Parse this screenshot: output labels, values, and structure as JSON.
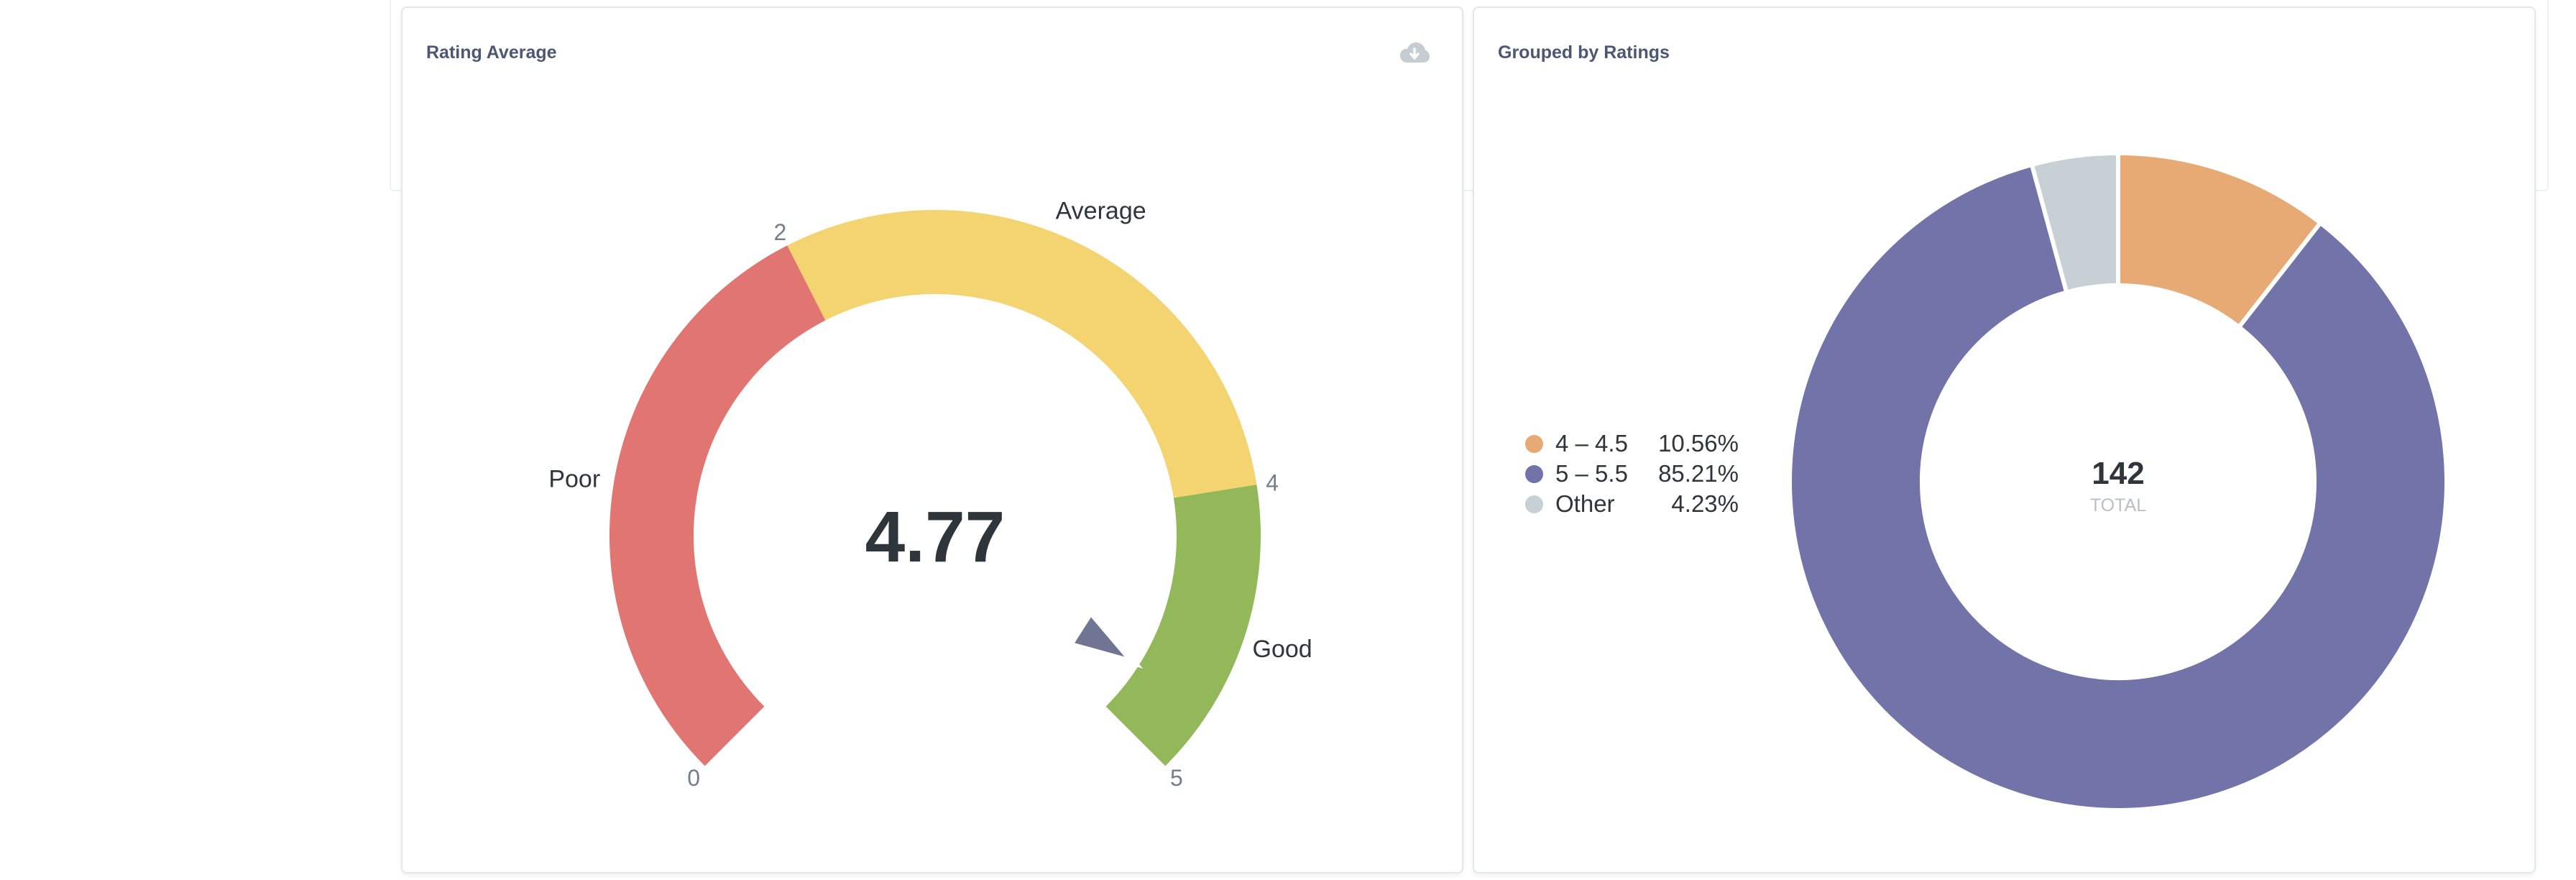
{
  "colors": {
    "poor": "#e07572",
    "average": "#f3d471",
    "good": "#92b85a",
    "needle": "#727493",
    "title": "#4c5773",
    "tick": "#727e8a",
    "value": "#2e353b",
    "total_label": "#b7bfc7",
    "icon": "#c5ccd2"
  },
  "cards": {
    "rating": {
      "title": "Rating Average",
      "download_icon": "cloud-download-icon"
    },
    "grouped": {
      "title": "Grouped by Ratings"
    }
  },
  "chart_data": [
    {
      "type": "gauge",
      "title": "Rating Average",
      "value": 4.77,
      "value_label": "4.77",
      "min": 0,
      "max": 5,
      "ticks": [
        {
          "value": 0,
          "label": "0"
        },
        {
          "value": 2,
          "label": "2"
        },
        {
          "value": 4,
          "label": "4"
        },
        {
          "value": 5,
          "label": "5"
        }
      ],
      "segments": [
        {
          "name": "Poor",
          "min": 0,
          "max": 2,
          "color": "#e07572"
        },
        {
          "name": "Average",
          "min": 2,
          "max": 4,
          "color": "#f3d471"
        },
        {
          "name": "Good",
          "min": 4,
          "max": 5,
          "color": "#92b85a"
        }
      ]
    },
    {
      "type": "pie",
      "title": "Grouped by Ratings",
      "total": 142,
      "total_label": "TOTAL",
      "slices": [
        {
          "label": "4 – 4.5",
          "percent": 10.56,
          "percent_label": "10.56%",
          "color": "#e8aa75"
        },
        {
          "label": "5 – 5.5",
          "percent": 85.21,
          "percent_label": "85.21%",
          "color": "#7273a8"
        },
        {
          "label": "Other",
          "percent": 4.23,
          "percent_label": "4.23%",
          "color": "#c7d0d5"
        }
      ],
      "legend_position": "left"
    }
  ]
}
